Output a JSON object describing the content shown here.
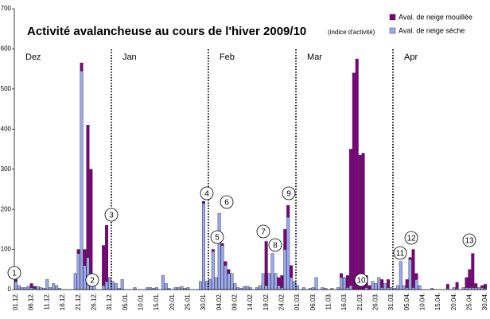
{
  "chart_data": {
    "type": "bar",
    "stacked": true,
    "title": "Activité avalancheuse au cours de l'hiver 2009/10",
    "subtitle": "(indice d'activité)",
    "months": [
      "Dez",
      "Jan",
      "Feb",
      "Mar",
      "Apr"
    ],
    "annotations": [
      "1",
      "2",
      "3",
      "4",
      "5",
      "6",
      "7",
      "8",
      "9",
      "10",
      "11",
      "12",
      "13"
    ],
    "categories": [
      "01.12.",
      null,
      null,
      null,
      null,
      "06.12.",
      null,
      null,
      null,
      null,
      "11.12.",
      null,
      null,
      null,
      null,
      "16.12.",
      null,
      null,
      null,
      null,
      "21.12.",
      null,
      null,
      null,
      null,
      "26.12.",
      null,
      null,
      null,
      null,
      "31.12.",
      null,
      null,
      null,
      null,
      "05.01.",
      null,
      null,
      null,
      null,
      "10.01.",
      null,
      null,
      null,
      null,
      "15.01.",
      null,
      null,
      null,
      null,
      "20.01.",
      null,
      null,
      null,
      null,
      "25.01.",
      null,
      null,
      null,
      null,
      "30.01.",
      null,
      null,
      null,
      null,
      "04.02.",
      null,
      null,
      null,
      null,
      "09.02.",
      null,
      null,
      null,
      null,
      "14.02.",
      null,
      null,
      null,
      null,
      "19.02.",
      null,
      null,
      null,
      null,
      "24.02.",
      null,
      null,
      null,
      null,
      "01.03.",
      null,
      null,
      null,
      null,
      "06.03.",
      null,
      null,
      null,
      null,
      "11.03.",
      null,
      null,
      null,
      null,
      "16.03.",
      null,
      null,
      null,
      null,
      "21.03.",
      null,
      null,
      null,
      null,
      "26.03.",
      null,
      null,
      null,
      null,
      "31.03.",
      null,
      null,
      null,
      null,
      "05.04.",
      null,
      null,
      null,
      null,
      "10.04.",
      null,
      null,
      null,
      null,
      "15.04.",
      null,
      null,
      null,
      null,
      "20.04.",
      null,
      null,
      null,
      null,
      "25.04.",
      null,
      null,
      null,
      null,
      "30.04."
    ],
    "series": [
      {
        "name": "Aval. de neige sèche",
        "color": "#9aa8f0",
        "values": [
          20,
          10,
          5,
          5,
          8,
          5,
          3,
          8,
          5,
          3,
          25,
          5,
          15,
          10,
          3,
          0,
          0,
          0,
          0,
          40,
          90,
          545,
          60,
          80,
          15,
          20,
          0,
          0,
          10,
          20,
          30,
          20,
          15,
          3,
          25,
          0,
          0,
          0,
          5,
          0,
          0,
          0,
          5,
          5,
          3,
          5,
          0,
          35,
          15,
          3,
          0,
          5,
          5,
          8,
          3,
          5,
          0,
          0,
          0,
          20,
          215,
          20,
          25,
          95,
          30,
          190,
          110,
          60,
          40,
          40,
          15,
          5,
          3,
          8,
          8,
          5,
          0,
          5,
          10,
          40,
          10,
          40,
          90,
          40,
          10,
          5,
          100,
          180,
          30,
          20,
          10,
          0,
          5,
          0,
          3,
          5,
          30,
          0,
          5,
          3,
          0,
          3,
          0,
          5,
          30,
          30,
          5,
          10,
          0,
          0,
          0,
          0,
          5,
          0,
          20,
          15,
          30,
          5,
          15,
          5,
          5,
          3,
          10,
          70,
          10,
          5,
          75,
          5,
          25,
          10,
          0,
          0,
          0,
          3,
          0,
          0,
          0,
          0,
          3,
          0,
          5,
          3,
          0,
          5,
          5,
          5,
          5,
          5,
          5,
          5,
          3
        ]
      },
      {
        "name": "Aval. de neige mouillée",
        "color": "#800080",
        "values": [
          5,
          0,
          0,
          0,
          0,
          10,
          5,
          0,
          0,
          0,
          0,
          0,
          0,
          0,
          0,
          0,
          0,
          0,
          0,
          0,
          10,
          20,
          40,
          330,
          285,
          0,
          0,
          0,
          100,
          140,
          0,
          0,
          0,
          0,
          0,
          0,
          0,
          0,
          0,
          0,
          0,
          0,
          0,
          0,
          0,
          0,
          0,
          0,
          0,
          0,
          0,
          0,
          0,
          0,
          0,
          0,
          0,
          0,
          0,
          0,
          5,
          0,
          0,
          5,
          0,
          0,
          5,
          10,
          10,
          0,
          0,
          0,
          0,
          0,
          0,
          0,
          0,
          0,
          0,
          0,
          110,
          0,
          0,
          0,
          20,
          30,
          50,
          30,
          30,
          0,
          0,
          0,
          0,
          0,
          0,
          0,
          0,
          0,
          0,
          0,
          0,
          0,
          0,
          0,
          10,
          0,
          30,
          340,
          540,
          575,
          335,
          340,
          30,
          10,
          0,
          0,
          0,
          20,
          0,
          20,
          0,
          0,
          0,
          0,
          0,
          20,
          5,
          95,
          15,
          0,
          0,
          0,
          0,
          0,
          0,
          0,
          0,
          0,
          10,
          0,
          0,
          15,
          0,
          0,
          25,
          45,
          85,
          10,
          0,
          5,
          10
        ]
      }
    ],
    "legend_order": [
      1,
      0
    ],
    "ylim": [
      0,
      700
    ],
    "yticks": [
      0,
      100,
      200,
      300,
      400,
      500,
      600,
      700
    ]
  }
}
